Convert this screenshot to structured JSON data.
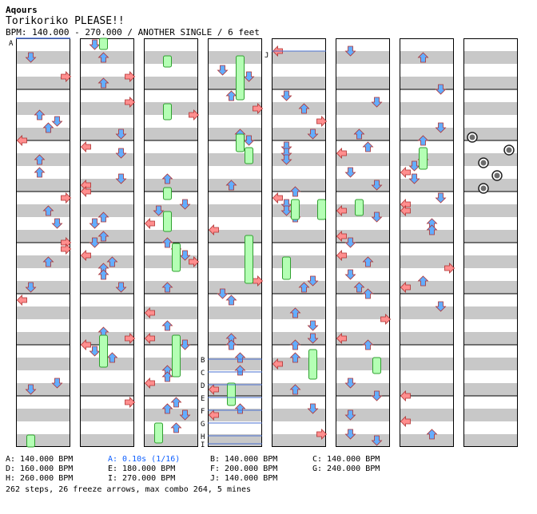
{
  "header": {
    "artist": "Aqours",
    "title": "Torikoriko PLEASE!!",
    "meta": "BPM: 140.000 - 270.000 / ANOTHER SINGLE / 6 feet"
  },
  "legend": [
    {
      "text": "A: 140.000 BPM",
      "color": "#000000"
    },
    {
      "text": "D: 160.000 BPM",
      "color": "#000000"
    },
    {
      "text": "H: 260.000 BPM",
      "color": "#000000"
    },
    {
      "text": "A: 0.10s (1/16)",
      "color": "#1060ff"
    },
    {
      "text": "E: 180.000 BPM",
      "color": "#000000"
    },
    {
      "text": "I: 270.000 BPM",
      "color": "#000000"
    },
    {
      "text": "B: 140.000 BPM",
      "color": "#000000"
    },
    {
      "text": "F: 200.000 BPM",
      "color": "#000000"
    },
    {
      "text": "J: 140.000 BPM",
      "color": "#000000"
    },
    {
      "text": "C: 140.000 BPM",
      "color": "#000000"
    },
    {
      "text": "G: 240.000 BPM",
      "color": "#000000"
    }
  ],
  "summary": "262 steps, 26 freeze arrows, max combo 264, 5 mines",
  "colors": {
    "left_right_arrow": "#ff8e8e",
    "up_down_arrow": "#63adff",
    "freeze_fill": "#b4ffb4",
    "freeze_border": "#30a030",
    "stripe": "#c8c8c8",
    "marker_line": "#4a6fd0",
    "mine": "#6c6c6c",
    "speed_label": "#1060ff"
  },
  "markers": {
    "A": "A",
    "B": "B",
    "C": "C",
    "D": "D",
    "E": "E",
    "F": "F",
    "G": "G",
    "H": "H",
    "I": "I",
    "J": "J"
  }
}
